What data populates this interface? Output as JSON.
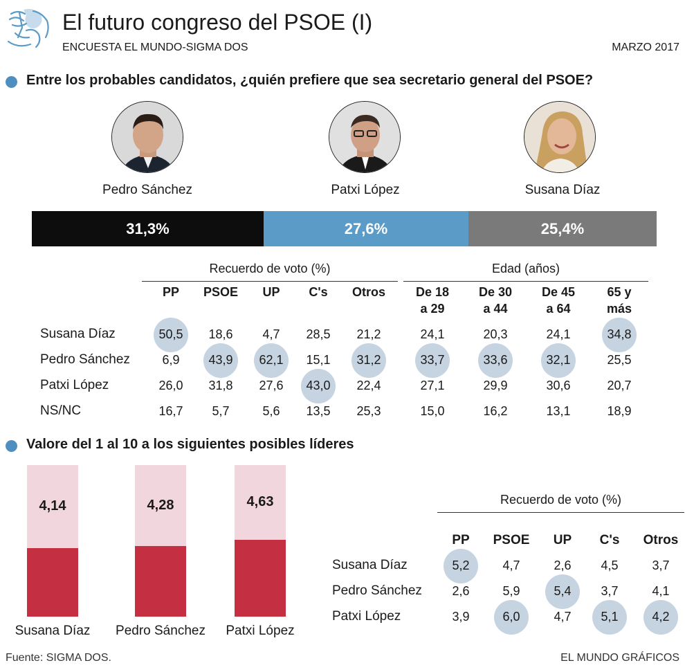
{
  "header": {
    "title": "El futuro congreso del PSOE (I)",
    "subtitle": "ENCUESTA EL MUNDO-SIGMA DOS",
    "date": "MARZO 2017"
  },
  "section1": {
    "question": "Entre los probables candidatos, ¿quién prefiere que sea secretario general del PSOE?",
    "candidates": [
      {
        "name": "Pedro Sánchez",
        "portrait": "portrait-pedro-sanchez"
      },
      {
        "name": "Patxi López",
        "portrait": "portrait-patxi-lopez"
      },
      {
        "name": "Susana Díaz",
        "portrait": "portrait-susana-diaz"
      }
    ]
  },
  "section2": {
    "question": "Valore del 1 al 10 a los siguientes posibles líderes"
  },
  "footer": {
    "source": "Fuente: SIGMA DOS.",
    "credit": "EL MUNDO GRÁFICOS"
  },
  "colors": {
    "pedro": "#0d0d0d",
    "patxi": "#5b9bc8",
    "susana": "#7a7a7a",
    "highlight": "#c6d3e1",
    "bullet": "#4f8fc0",
    "rating_fill": "#c43042",
    "rating_bg": "#f1d6dd"
  },
  "chart_data": [
    {
      "type": "bar",
      "orientation": "stacked-horizontal",
      "categories": [
        "Pedro Sánchez",
        "Patxi López",
        "Susana Díaz"
      ],
      "values": [
        31.3,
        27.6,
        25.4
      ],
      "labels": [
        "31,3%",
        "27,6%",
        "25,4%"
      ]
    },
    {
      "type": "table",
      "groups": [
        {
          "label": "Recuerdo de voto (%)",
          "columns": [
            "PP",
            "PSOE",
            "UP",
            "C's",
            "Otros"
          ]
        },
        {
          "label": "Edad (años)",
          "columns": [
            "De 18\na 29",
            "De 30\na 44",
            "De 45\na 64",
            "65 y\nmás"
          ]
        }
      ],
      "rows": [
        {
          "label": "Susana Díaz",
          "values": [
            "50,5",
            "18,6",
            "4,7",
            "28,5",
            "21,2",
            "24,1",
            "20,3",
            "24,1",
            "34,8"
          ]
        },
        {
          "label": "Pedro Sánchez",
          "values": [
            "6,9",
            "43,9",
            "62,1",
            "15,1",
            "31,2",
            "33,7",
            "33,6",
            "32,1",
            "25,5"
          ]
        },
        {
          "label": "Patxi López",
          "values": [
            "26,0",
            "31,8",
            "27,6",
            "43,0",
            "22,4",
            "27,1",
            "29,9",
            "30,6",
            "20,7"
          ]
        },
        {
          "label": "NS/NC",
          "values": [
            "16,7",
            "5,7",
            "5,6",
            "13,5",
            "25,3",
            "15,0",
            "16,2",
            "13,1",
            "18,9"
          ]
        }
      ],
      "highlighted": [
        [
          0,
          0
        ],
        [
          1,
          1
        ],
        [
          1,
          2
        ],
        [
          1,
          4
        ],
        [
          1,
          5
        ],
        [
          1,
          6
        ],
        [
          1,
          7
        ],
        [
          0,
          8
        ],
        [
          2,
          3
        ]
      ]
    },
    {
      "type": "bar",
      "categories": [
        "Susana Díaz",
        "Pedro Sánchez",
        "Patxi López"
      ],
      "values": [
        4.14,
        4.28,
        4.63
      ],
      "labels": [
        "4,14",
        "4,28",
        "4,63"
      ],
      "ylim": [
        0,
        10
      ]
    },
    {
      "type": "table",
      "groups": [
        {
          "label": "Recuerdo de voto (%)",
          "columns": [
            "PP",
            "PSOE",
            "UP",
            "C's",
            "Otros"
          ]
        }
      ],
      "rows": [
        {
          "label": "Susana Díaz",
          "values": [
            "5,2",
            "4,7",
            "2,6",
            "4,5",
            "3,7"
          ]
        },
        {
          "label": "Pedro Sánchez",
          "values": [
            "2,6",
            "5,9",
            "5,4",
            "3,7",
            "4,1"
          ]
        },
        {
          "label": "Patxi López",
          "values": [
            "3,9",
            "6,0",
            "4,7",
            "5,1",
            "4,2"
          ]
        }
      ],
      "highlighted": [
        [
          0,
          0
        ],
        [
          2,
          1
        ],
        [
          1,
          2
        ],
        [
          2,
          3
        ],
        [
          2,
          4
        ]
      ]
    }
  ]
}
